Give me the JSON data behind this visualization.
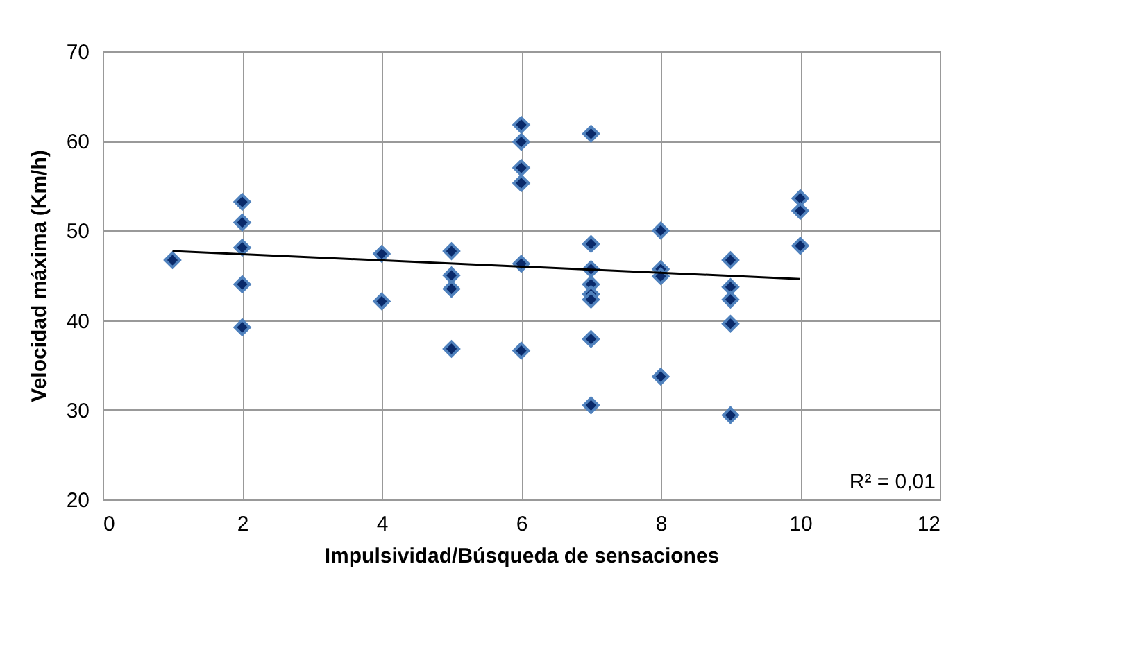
{
  "chart_data": {
    "type": "scatter",
    "xlabel": "Impulsividad/Búsqueda de sensaciones",
    "ylabel": "Velocidad máxima (Km/h)",
    "annotations": [
      "R² = 0,01"
    ],
    "xlim": [
      0,
      12
    ],
    "xticks": [
      0,
      2,
      4,
      6,
      8,
      10,
      12
    ],
    "ylim": [
      20,
      70
    ],
    "yticks": [
      20,
      30,
      40,
      50,
      60,
      70
    ],
    "grid": true,
    "series": [
      {
        "color": "#0a2a6a",
        "marker": "diamond",
        "x": [
          1,
          2,
          2,
          2,
          2,
          2,
          4,
          4,
          5,
          5,
          5,
          5,
          6,
          6,
          6,
          6,
          6,
          6,
          7,
          7,
          7,
          7,
          7,
          7,
          7,
          7,
          8,
          8,
          8,
          8,
          9,
          9,
          9,
          9,
          9,
          10,
          10,
          10
        ],
        "values": [
          46.7,
          53.2,
          50.9,
          48.1,
          44.0,
          39.2,
          47.4,
          42.1,
          47.7,
          45.0,
          43.5,
          36.8,
          61.8,
          59.9,
          57.0,
          55.3,
          46.3,
          36.6,
          60.8,
          48.5,
          45.7,
          44.0,
          42.9,
          42.3,
          37.9,
          30.5,
          50.0,
          45.7,
          44.9,
          33.7,
          46.7,
          43.7,
          42.3,
          39.6,
          29.4,
          53.6,
          52.2,
          48.3
        ]
      },
      {
        "type": "line",
        "marker": "none",
        "line_style": "solid",
        "color": "#000000",
        "x": [
          1,
          10
        ],
        "values": [
          47.7,
          44.6
        ]
      }
    ]
  }
}
